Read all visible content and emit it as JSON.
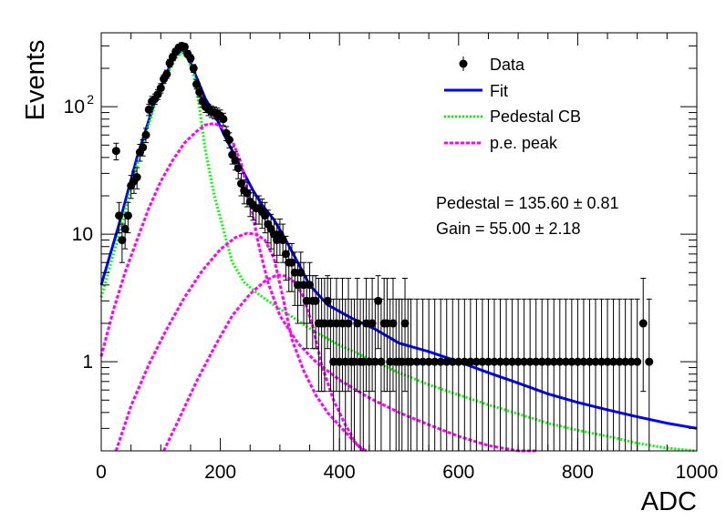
{
  "chart_data": {
    "type": "scatter",
    "title": "",
    "xlabel": "ADC",
    "ylabel": "Events",
    "xlim": [
      0,
      1000
    ],
    "ylim": [
      0.2,
      380
    ],
    "yscale": "log",
    "grid": false,
    "legend_position": "top-right",
    "x_ticks": [
      {
        "value": 0,
        "label": "0"
      },
      {
        "value": 200,
        "label": "200"
      },
      {
        "value": 400,
        "label": "400"
      },
      {
        "value": 600,
        "label": "600"
      },
      {
        "value": 800,
        "label": "800"
      },
      {
        "value": 1000,
        "label": "1000"
      }
    ],
    "y_ticks": [
      {
        "value": 1,
        "label": "1"
      },
      {
        "value": 10,
        "label": "10"
      },
      {
        "value": 100,
        "label": "10",
        "sup": "2"
      }
    ],
    "legend": [
      {
        "key": "data",
        "label": "Data",
        "color": "#000000"
      },
      {
        "key": "fit",
        "label": "Fit",
        "color": "#0000ff"
      },
      {
        "key": "pedestal",
        "label": "Pedestal CB",
        "color": "#00ff00"
      },
      {
        "key": "pe",
        "label": "p.e. peak",
        "color": "#ff00ff"
      }
    ],
    "annotations": {
      "pedestal": "Pedestal = 135.60 ± 0.81",
      "gain": "Gain = 55.00 ± 2.18"
    },
    "series": [
      {
        "name": "Data",
        "kind": "points",
        "color": "#000000",
        "points": [
          [
            25,
            45
          ],
          [
            30,
            14
          ],
          [
            35,
            9
          ],
          [
            40,
            11
          ],
          [
            45,
            14
          ],
          [
            50,
            24
          ],
          [
            55,
            26
          ],
          [
            60,
            28
          ],
          [
            65,
            44
          ],
          [
            70,
            48
          ],
          [
            75,
            60
          ],
          [
            80,
            95
          ],
          [
            85,
            110
          ],
          [
            90,
            115
          ],
          [
            95,
            125
          ],
          [
            100,
            140
          ],
          [
            105,
            165
          ],
          [
            110,
            180
          ],
          [
            115,
            220
          ],
          [
            120,
            245
          ],
          [
            125,
            270
          ],
          [
            130,
            290
          ],
          [
            135,
            300
          ],
          [
            140,
            295
          ],
          [
            145,
            260
          ],
          [
            150,
            240
          ],
          [
            155,
            200
          ],
          [
            160,
            150
          ],
          [
            165,
            130
          ],
          [
            170,
            110
          ],
          [
            175,
            100
          ],
          [
            180,
            95
          ],
          [
            185,
            92
          ],
          [
            190,
            90
          ],
          [
            195,
            88
          ],
          [
            200,
            85
          ],
          [
            205,
            80
          ],
          [
            210,
            62
          ],
          [
            215,
            55
          ],
          [
            220,
            42
          ],
          [
            225,
            38
          ],
          [
            230,
            33
          ],
          [
            235,
            25
          ],
          [
            240,
            22
          ],
          [
            245,
            21
          ],
          [
            250,
            18
          ],
          [
            255,
            17
          ],
          [
            260,
            16
          ],
          [
            265,
            16
          ],
          [
            270,
            15
          ],
          [
            275,
            14
          ],
          [
            280,
            12
          ],
          [
            285,
            11
          ],
          [
            290,
            10
          ],
          [
            295,
            9
          ],
          [
            300,
            10
          ],
          [
            305,
            9
          ],
          [
            310,
            7
          ],
          [
            315,
            6
          ],
          [
            320,
            6
          ],
          [
            325,
            5
          ],
          [
            330,
            4
          ],
          [
            335,
            5
          ],
          [
            340,
            4
          ],
          [
            345,
            3
          ],
          [
            350,
            4
          ],
          [
            355,
            3
          ],
          [
            360,
            3
          ],
          [
            365,
            2
          ],
          [
            370,
            2
          ],
          [
            375,
            2
          ],
          [
            380,
            3
          ],
          [
            385,
            2
          ],
          [
            390,
            1
          ],
          [
            395,
            2
          ],
          [
            400,
            1
          ],
          [
            405,
            2
          ],
          [
            410,
            1
          ],
          [
            415,
            2
          ],
          [
            420,
            1
          ],
          [
            425,
            1
          ],
          [
            430,
            2
          ],
          [
            435,
            1
          ],
          [
            440,
            1
          ],
          [
            445,
            2
          ],
          [
            450,
            1
          ],
          [
            455,
            2
          ],
          [
            460,
            1
          ],
          [
            465,
            3
          ],
          [
            470,
            1
          ],
          [
            475,
            2
          ],
          [
            480,
            2
          ],
          [
            485,
            1
          ],
          [
            490,
            2
          ],
          [
            495,
            1
          ],
          [
            500,
            1
          ],
          [
            505,
            1
          ],
          [
            510,
            2
          ],
          [
            515,
            1
          ],
          [
            520,
            1
          ],
          [
            530,
            1
          ],
          [
            540,
            1
          ],
          [
            550,
            1
          ],
          [
            560,
            1
          ],
          [
            570,
            1
          ],
          [
            580,
            1
          ],
          [
            590,
            1
          ],
          [
            600,
            1
          ],
          [
            610,
            1
          ],
          [
            620,
            1
          ],
          [
            630,
            1
          ],
          [
            640,
            1
          ],
          [
            650,
            1
          ],
          [
            660,
            1
          ],
          [
            670,
            1
          ],
          [
            680,
            1
          ],
          [
            690,
            1
          ],
          [
            700,
            1
          ],
          [
            710,
            1
          ],
          [
            720,
            1
          ],
          [
            730,
            1
          ],
          [
            740,
            1
          ],
          [
            750,
            1
          ],
          [
            760,
            1
          ],
          [
            770,
            1
          ],
          [
            780,
            1
          ],
          [
            790,
            1
          ],
          [
            800,
            1
          ],
          [
            810,
            1
          ],
          [
            820,
            1
          ],
          [
            830,
            1
          ],
          [
            840,
            1
          ],
          [
            850,
            1
          ],
          [
            860,
            1
          ],
          [
            870,
            1
          ],
          [
            880,
            1
          ],
          [
            890,
            1
          ],
          [
            900,
            1
          ],
          [
            910,
            2
          ],
          [
            920,
            1
          ]
        ]
      },
      {
        "name": "Fit",
        "kind": "line",
        "color": "#0000ff",
        "points": [
          [
            0,
            4
          ],
          [
            30,
            12
          ],
          [
            60,
            40
          ],
          [
            90,
            110
          ],
          [
            110,
            185
          ],
          [
            125,
            255
          ],
          [
            135,
            275
          ],
          [
            145,
            250
          ],
          [
            160,
            170
          ],
          [
            175,
            115
          ],
          [
            190,
            88
          ],
          [
            205,
            62
          ],
          [
            220,
            45
          ],
          [
            240,
            30
          ],
          [
            255,
            22
          ],
          [
            270,
            17
          ],
          [
            290,
            13
          ],
          [
            310,
            9
          ],
          [
            330,
            6
          ],
          [
            350,
            4
          ],
          [
            380,
            2.8
          ],
          [
            420,
            2.2
          ],
          [
            460,
            1.8
          ],
          [
            500,
            1.4
          ],
          [
            550,
            1.2
          ],
          [
            600,
            1.0
          ],
          [
            650,
            0.82
          ],
          [
            700,
            0.68
          ],
          [
            750,
            0.56
          ],
          [
            800,
            0.48
          ],
          [
            850,
            0.42
          ],
          [
            900,
            0.37
          ],
          [
            950,
            0.33
          ],
          [
            1000,
            0.3
          ]
        ]
      },
      {
        "name": "Pedestal CB",
        "kind": "line",
        "color": "#00ff00",
        "points": [
          [
            0,
            3.2
          ],
          [
            30,
            10
          ],
          [
            60,
            35
          ],
          [
            90,
            105
          ],
          [
            110,
            175
          ],
          [
            125,
            240
          ],
          [
            135,
            265
          ],
          [
            145,
            240
          ],
          [
            155,
            180
          ],
          [
            165,
            100
          ],
          [
            175,
            45
          ],
          [
            190,
            20
          ],
          [
            205,
            11
          ],
          [
            220,
            6
          ],
          [
            240,
            4.2
          ],
          [
            260,
            3.5
          ],
          [
            280,
            3
          ],
          [
            300,
            2.6
          ],
          [
            330,
            2.1
          ],
          [
            360,
            1.7
          ],
          [
            400,
            1.35
          ],
          [
            450,
            1.05
          ],
          [
            500,
            0.82
          ],
          [
            550,
            0.66
          ],
          [
            600,
            0.55
          ],
          [
            650,
            0.46
          ],
          [
            700,
            0.39
          ],
          [
            750,
            0.33
          ],
          [
            800,
            0.29
          ],
          [
            850,
            0.26
          ],
          [
            900,
            0.23
          ],
          [
            950,
            0.21
          ],
          [
            1000,
            0.2
          ]
        ]
      },
      {
        "name": "p.e. peak 1",
        "kind": "line",
        "color": "#ff00ff",
        "points": [
          [
            0,
            1.1
          ],
          [
            20,
            2.5
          ],
          [
            40,
            5
          ],
          [
            60,
            9
          ],
          [
            80,
            16
          ],
          [
            100,
            26
          ],
          [
            120,
            38
          ],
          [
            140,
            52
          ],
          [
            160,
            64
          ],
          [
            175,
            72
          ],
          [
            190,
            74
          ],
          [
            205,
            68
          ],
          [
            220,
            54
          ],
          [
            235,
            36
          ],
          [
            250,
            18
          ],
          [
            265,
            8
          ],
          [
            280,
            4.2
          ],
          [
            300,
            2.3
          ],
          [
            330,
            1.4
          ],
          [
            360,
            1.0
          ],
          [
            400,
            0.72
          ],
          [
            450,
            0.52
          ],
          [
            500,
            0.4
          ],
          [
            550,
            0.32
          ],
          [
            600,
            0.26
          ],
          [
            650,
            0.22
          ],
          [
            700,
            0.19
          ],
          [
            730,
            0.17
          ]
        ]
      },
      {
        "name": "p.e. peak 2",
        "kind": "line",
        "color": "#ff00ff",
        "points": [
          [
            25,
            0.2
          ],
          [
            50,
            0.45
          ],
          [
            80,
            0.95
          ],
          [
            110,
            1.8
          ],
          [
            140,
            3.2
          ],
          [
            170,
            5.2
          ],
          [
            200,
            7.6
          ],
          [
            225,
            9.4
          ],
          [
            245,
            10.2
          ],
          [
            260,
            10
          ],
          [
            275,
            9
          ],
          [
            290,
            6.5
          ],
          [
            305,
            3.2
          ],
          [
            320,
            1.5
          ],
          [
            340,
            0.85
          ],
          [
            360,
            0.55
          ],
          [
            380,
            0.4
          ],
          [
            410,
            0.28
          ],
          [
            440,
            0.2
          ]
        ]
      },
      {
        "name": "p.e. peak 3",
        "kind": "line",
        "color": "#ff00ff",
        "points": [
          [
            105,
            0.2
          ],
          [
            130,
            0.35
          ],
          [
            160,
            0.7
          ],
          [
            190,
            1.3
          ],
          [
            220,
            2.3
          ],
          [
            250,
            3.4
          ],
          [
            275,
            4.3
          ],
          [
            295,
            4.8
          ],
          [
            310,
            4.7
          ],
          [
            325,
            4.2
          ],
          [
            340,
            3.2
          ],
          [
            355,
            1.9
          ],
          [
            370,
            0.95
          ],
          [
            390,
            0.5
          ],
          [
            410,
            0.32
          ],
          [
            430,
            0.22
          ],
          [
            445,
            0.2
          ]
        ]
      }
    ]
  }
}
